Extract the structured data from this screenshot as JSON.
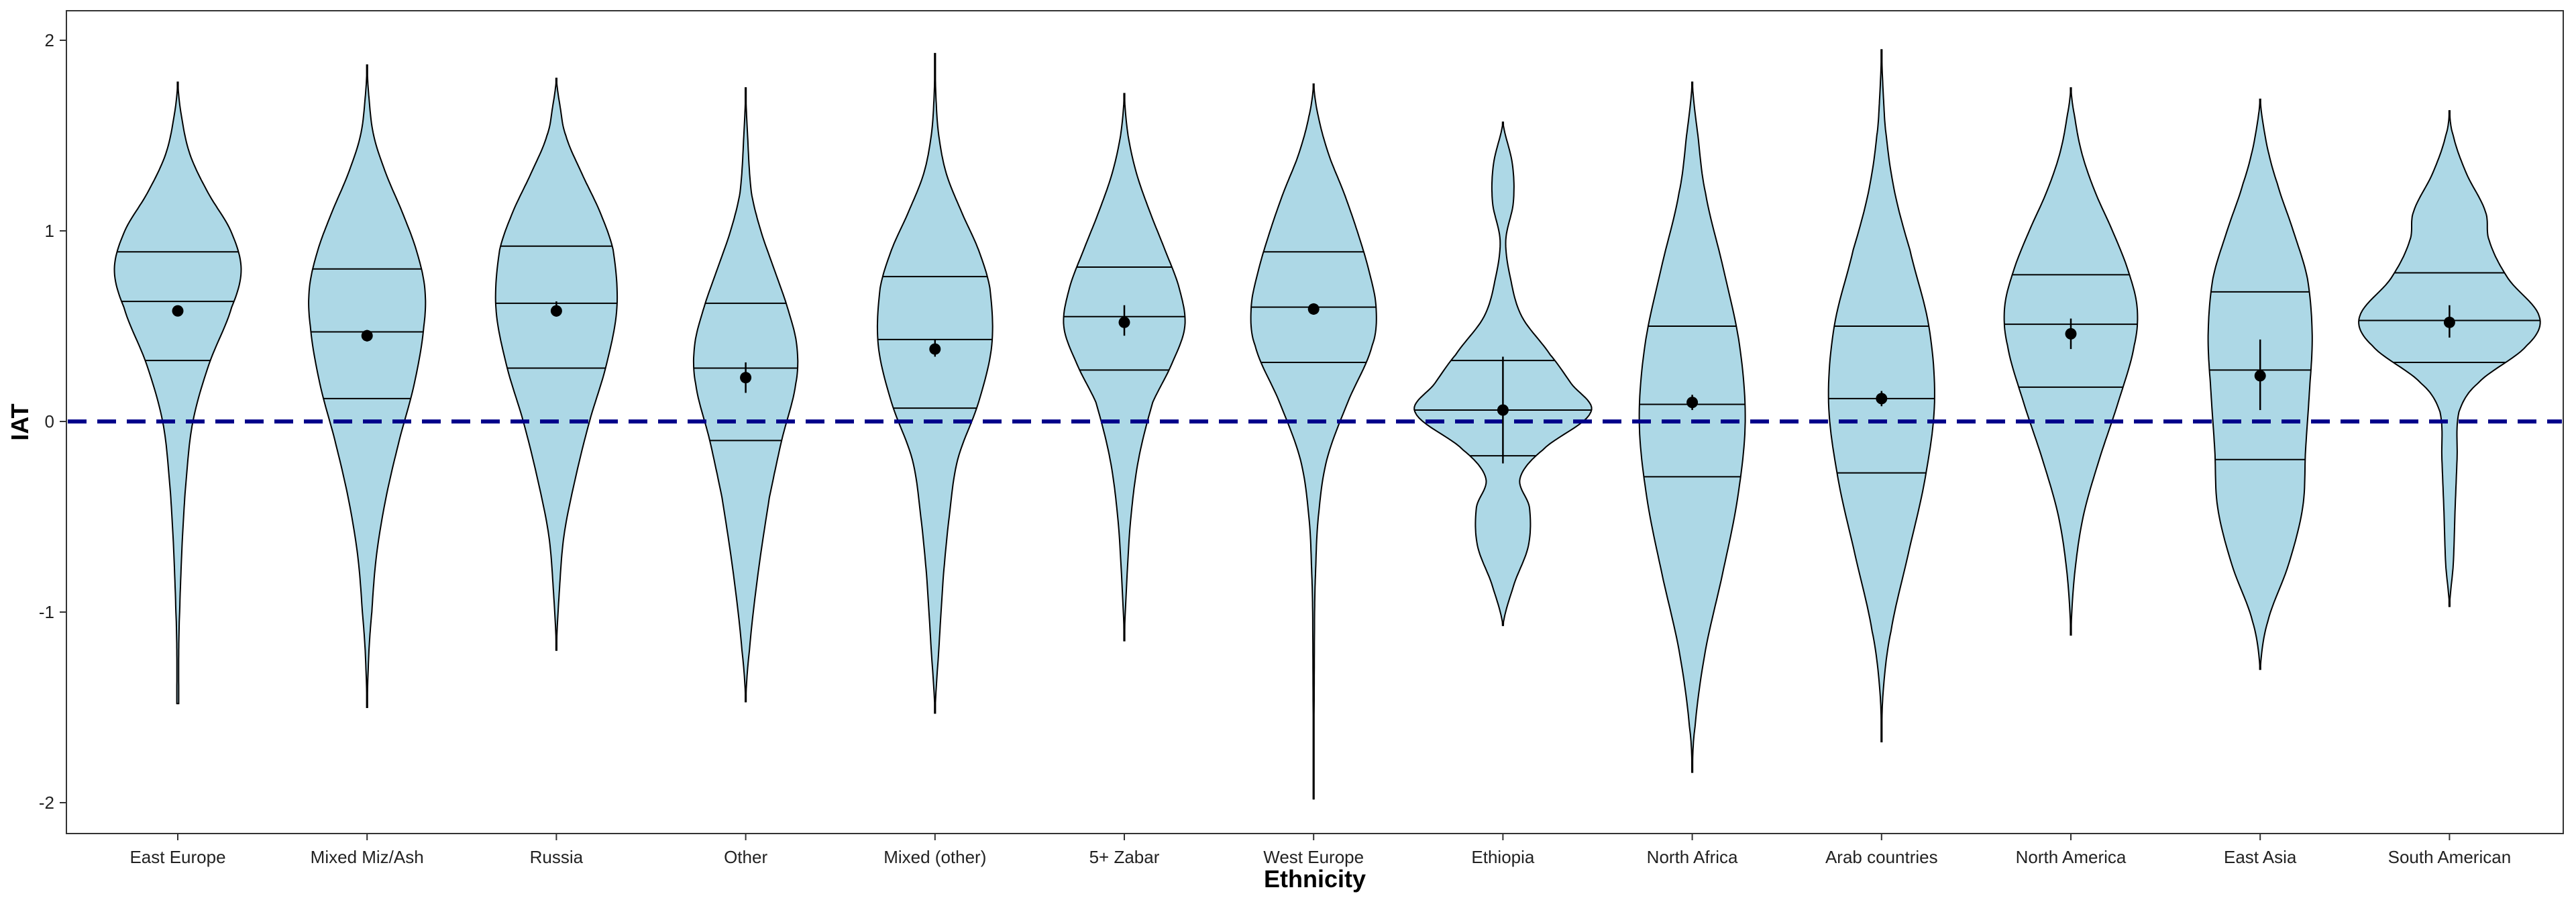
{
  "chart_data": {
    "type": "violin",
    "title": "",
    "xlabel": "Ethnicity",
    "ylabel": "IAT",
    "ylim": [
      -2.15,
      2.15
    ],
    "yticks": [
      -2,
      -1,
      0,
      1,
      2
    ],
    "yticks_labels": [
      "-2",
      "-1",
      "0",
      "1",
      "2"
    ],
    "reference_line": {
      "y": 0,
      "style": "dashed",
      "color": "#00008b"
    },
    "fill_color": "#add8e6",
    "grid": false,
    "legend": "none",
    "categories": [
      "East Europe",
      "Mixed Miz/Ash",
      "Russia",
      "Other",
      "Mixed (other)",
      "5+ Zabar",
      "West Europe",
      "Ethiopia",
      "North Africa",
      "Arab countries",
      "North America",
      "East Asia",
      "South American"
    ],
    "groups": [
      {
        "name": "East Europe",
        "min": -1.48,
        "max": 1.78,
        "q25": 0.32,
        "q50": 0.63,
        "q75": 0.89,
        "mean": 0.58,
        "se_low": 0.56,
        "se_high": 0.6,
        "density": [
          [
            -1.48,
            0.01
          ],
          [
            -1.2,
            0.01
          ],
          [
            -1.0,
            0.02
          ],
          [
            -0.6,
            0.05
          ],
          [
            -0.3,
            0.09
          ],
          [
            0.0,
            0.16
          ],
          [
            0.3,
            0.33
          ],
          [
            0.6,
            0.57
          ],
          [
            0.8,
            0.67
          ],
          [
            1.0,
            0.56
          ],
          [
            1.2,
            0.32
          ],
          [
            1.4,
            0.13
          ],
          [
            1.6,
            0.04
          ],
          [
            1.78,
            0.0
          ]
        ]
      },
      {
        "name": "Mixed Miz/Ash",
        "min": -1.5,
        "max": 1.87,
        "q25": 0.12,
        "q50": 0.47,
        "q75": 0.8,
        "mean": 0.45,
        "se_low": 0.42,
        "se_high": 0.48,
        "density": [
          [
            -1.5,
            0.0
          ],
          [
            -1.2,
            0.02
          ],
          [
            -1.0,
            0.05
          ],
          [
            -0.7,
            0.1
          ],
          [
            -0.4,
            0.2
          ],
          [
            -0.1,
            0.34
          ],
          [
            0.2,
            0.5
          ],
          [
            0.5,
            0.6
          ],
          [
            0.7,
            0.61
          ],
          [
            0.9,
            0.52
          ],
          [
            1.1,
            0.37
          ],
          [
            1.3,
            0.2
          ],
          [
            1.5,
            0.07
          ],
          [
            1.7,
            0.02
          ],
          [
            1.87,
            0.0
          ]
        ]
      },
      {
        "name": "Russia",
        "min": -1.2,
        "max": 1.8,
        "q25": 0.28,
        "q50": 0.62,
        "q75": 0.92,
        "mean": 0.58,
        "se_low": 0.55,
        "se_high": 0.63,
        "density": [
          [
            -1.2,
            0.0
          ],
          [
            -0.9,
            0.03
          ],
          [
            -0.6,
            0.08
          ],
          [
            -0.3,
            0.2
          ],
          [
            0.0,
            0.35
          ],
          [
            0.3,
            0.53
          ],
          [
            0.6,
            0.64
          ],
          [
            0.9,
            0.6
          ],
          [
            1.1,
            0.46
          ],
          [
            1.3,
            0.27
          ],
          [
            1.5,
            0.1
          ],
          [
            1.65,
            0.04
          ],
          [
            1.8,
            0.0
          ]
        ]
      },
      {
        "name": "Other",
        "min": -1.47,
        "max": 1.75,
        "q25": -0.1,
        "q50": 0.28,
        "q75": 0.62,
        "mean": 0.23,
        "se_low": 0.15,
        "se_high": 0.31,
        "density": [
          [
            -1.47,
            0.0
          ],
          [
            -1.2,
            0.04
          ],
          [
            -0.8,
            0.13
          ],
          [
            -0.4,
            0.25
          ],
          [
            -0.1,
            0.38
          ],
          [
            0.2,
            0.53
          ],
          [
            0.4,
            0.54
          ],
          [
            0.6,
            0.44
          ],
          [
            0.8,
            0.3
          ],
          [
            1.0,
            0.16
          ],
          [
            1.2,
            0.06
          ],
          [
            1.5,
            0.02
          ],
          [
            1.75,
            0.0
          ]
        ]
      },
      {
        "name": "Mixed (other)",
        "min": -1.53,
        "max": 1.93,
        "q25": 0.07,
        "q50": 0.43,
        "q75": 0.76,
        "mean": 0.38,
        "se_low": 0.34,
        "se_high": 0.43,
        "density": [
          [
            -1.53,
            0.0
          ],
          [
            -1.2,
            0.04
          ],
          [
            -0.8,
            0.09
          ],
          [
            -0.5,
            0.15
          ],
          [
            -0.2,
            0.24
          ],
          [
            0.1,
            0.46
          ],
          [
            0.4,
            0.6
          ],
          [
            0.7,
            0.58
          ],
          [
            0.9,
            0.46
          ],
          [
            1.1,
            0.28
          ],
          [
            1.3,
            0.12
          ],
          [
            1.5,
            0.04
          ],
          [
            1.7,
            0.01
          ],
          [
            1.93,
            0.0
          ]
        ]
      },
      {
        "name": "5+ Zabar",
        "min": -1.15,
        "max": 1.72,
        "q25": 0.27,
        "q50": 0.55,
        "q75": 0.81,
        "mean": 0.52,
        "se_low": 0.45,
        "se_high": 0.61,
        "density": [
          [
            -1.15,
            0.0
          ],
          [
            -0.8,
            0.03
          ],
          [
            -0.5,
            0.07
          ],
          [
            -0.2,
            0.15
          ],
          [
            0.1,
            0.3
          ],
          [
            0.3,
            0.5
          ],
          [
            0.5,
            0.64
          ],
          [
            0.7,
            0.58
          ],
          [
            0.9,
            0.43
          ],
          [
            1.1,
            0.27
          ],
          [
            1.3,
            0.13
          ],
          [
            1.5,
            0.04
          ],
          [
            1.72,
            0.0
          ]
        ]
      },
      {
        "name": "West Europe",
        "min": -1.98,
        "max": 1.77,
        "q25": 0.31,
        "q50": 0.6,
        "q75": 0.89,
        "mean": 0.59,
        "se_low": 0.56,
        "se_high": 0.62,
        "density": [
          [
            -1.98,
            0.0
          ],
          [
            -1.5,
            0.005
          ],
          [
            -1.0,
            0.01
          ],
          [
            -0.8,
            0.02
          ],
          [
            -0.5,
            0.05
          ],
          [
            -0.2,
            0.14
          ],
          [
            0.1,
            0.36
          ],
          [
            0.4,
            0.62
          ],
          [
            0.6,
            0.66
          ],
          [
            0.8,
            0.58
          ],
          [
            1.0,
            0.46
          ],
          [
            1.2,
            0.32
          ],
          [
            1.4,
            0.16
          ],
          [
            1.6,
            0.05
          ],
          [
            1.77,
            0.0
          ]
        ]
      },
      {
        "name": "Ethiopia",
        "min": -1.07,
        "max": 1.57,
        "q25": -0.18,
        "q50": 0.06,
        "q75": 0.32,
        "mean": 0.06,
        "se_low": -0.22,
        "se_high": 0.34,
        "density": [
          [
            -1.07,
            0.0
          ],
          [
            -0.85,
            0.12
          ],
          [
            -0.65,
            0.27
          ],
          [
            -0.45,
            0.28
          ],
          [
            -0.3,
            0.18
          ],
          [
            -0.15,
            0.42
          ],
          [
            0.05,
            0.93
          ],
          [
            0.2,
            0.72
          ],
          [
            0.35,
            0.5
          ],
          [
            0.55,
            0.2
          ],
          [
            0.75,
            0.08
          ],
          [
            0.95,
            0.03
          ],
          [
            1.15,
            0.11
          ],
          [
            1.35,
            0.1
          ],
          [
            1.57,
            0.0
          ]
        ]
      },
      {
        "name": "North Africa",
        "min": -1.84,
        "max": 1.78,
        "q25": -0.29,
        "q50": 0.09,
        "q75": 0.5,
        "mean": 0.1,
        "se_low": 0.06,
        "se_high": 0.14,
        "density": [
          [
            -1.84,
            0.0
          ],
          [
            -1.6,
            0.03
          ],
          [
            -1.2,
            0.14
          ],
          [
            -0.8,
            0.32
          ],
          [
            -0.4,
            0.48
          ],
          [
            0.0,
            0.56
          ],
          [
            0.4,
            0.5
          ],
          [
            0.8,
            0.33
          ],
          [
            1.2,
            0.14
          ],
          [
            1.5,
            0.06
          ],
          [
            1.78,
            0.0
          ]
        ]
      },
      {
        "name": "Arab countries",
        "min": -1.68,
        "max": 1.95,
        "q25": -0.27,
        "q50": 0.12,
        "q75": 0.5,
        "mean": 0.12,
        "se_low": 0.08,
        "se_high": 0.16,
        "density": [
          [
            -1.68,
            0.0
          ],
          [
            -1.4,
            0.02
          ],
          [
            -1.1,
            0.1
          ],
          [
            -0.7,
            0.28
          ],
          [
            -0.3,
            0.46
          ],
          [
            0.1,
            0.56
          ],
          [
            0.5,
            0.5
          ],
          [
            0.9,
            0.3
          ],
          [
            1.2,
            0.14
          ],
          [
            1.5,
            0.05
          ],
          [
            1.7,
            0.02
          ],
          [
            1.95,
            0.0
          ]
        ]
      },
      {
        "name": "North America",
        "min": -1.12,
        "max": 1.75,
        "q25": 0.18,
        "q50": 0.51,
        "q75": 0.77,
        "mean": 0.46,
        "se_low": 0.38,
        "se_high": 0.54,
        "density": [
          [
            -1.12,
            0.0
          ],
          [
            -0.8,
            0.04
          ],
          [
            -0.5,
            0.13
          ],
          [
            -0.2,
            0.3
          ],
          [
            0.1,
            0.5
          ],
          [
            0.4,
            0.67
          ],
          [
            0.6,
            0.7
          ],
          [
            0.8,
            0.6
          ],
          [
            1.0,
            0.44
          ],
          [
            1.2,
            0.26
          ],
          [
            1.4,
            0.12
          ],
          [
            1.6,
            0.04
          ],
          [
            1.75,
            0.0
          ]
        ]
      },
      {
        "name": "East Asia",
        "min": -1.3,
        "max": 1.69,
        "q25": -0.2,
        "q50": 0.27,
        "q75": 0.68,
        "mean": 0.24,
        "se_low": 0.06,
        "se_high": 0.43,
        "density": [
          [
            -1.3,
            0.0
          ],
          [
            -1.05,
            0.08
          ],
          [
            -0.75,
            0.3
          ],
          [
            -0.45,
            0.45
          ],
          [
            -0.15,
            0.48
          ],
          [
            0.15,
            0.52
          ],
          [
            0.45,
            0.55
          ],
          [
            0.75,
            0.5
          ],
          [
            1.0,
            0.35
          ],
          [
            1.25,
            0.18
          ],
          [
            1.45,
            0.07
          ],
          [
            1.69,
            0.0
          ]
        ]
      },
      {
        "name": "South American",
        "min": -0.97,
        "max": 1.63,
        "q25": 0.31,
        "q50": 0.53,
        "q75": 0.78,
        "mean": 0.52,
        "se_low": 0.44,
        "se_high": 0.61,
        "density": [
          [
            -0.97,
            0.0
          ],
          [
            -0.75,
            0.04
          ],
          [
            -0.45,
            0.06
          ],
          [
            -0.2,
            0.08
          ],
          [
            0.05,
            0.1
          ],
          [
            0.2,
            0.3
          ],
          [
            0.4,
            0.82
          ],
          [
            0.55,
            0.95
          ],
          [
            0.75,
            0.62
          ],
          [
            0.95,
            0.42
          ],
          [
            1.1,
            0.38
          ],
          [
            1.3,
            0.18
          ],
          [
            1.5,
            0.04
          ],
          [
            1.63,
            0.0
          ]
        ]
      }
    ]
  }
}
